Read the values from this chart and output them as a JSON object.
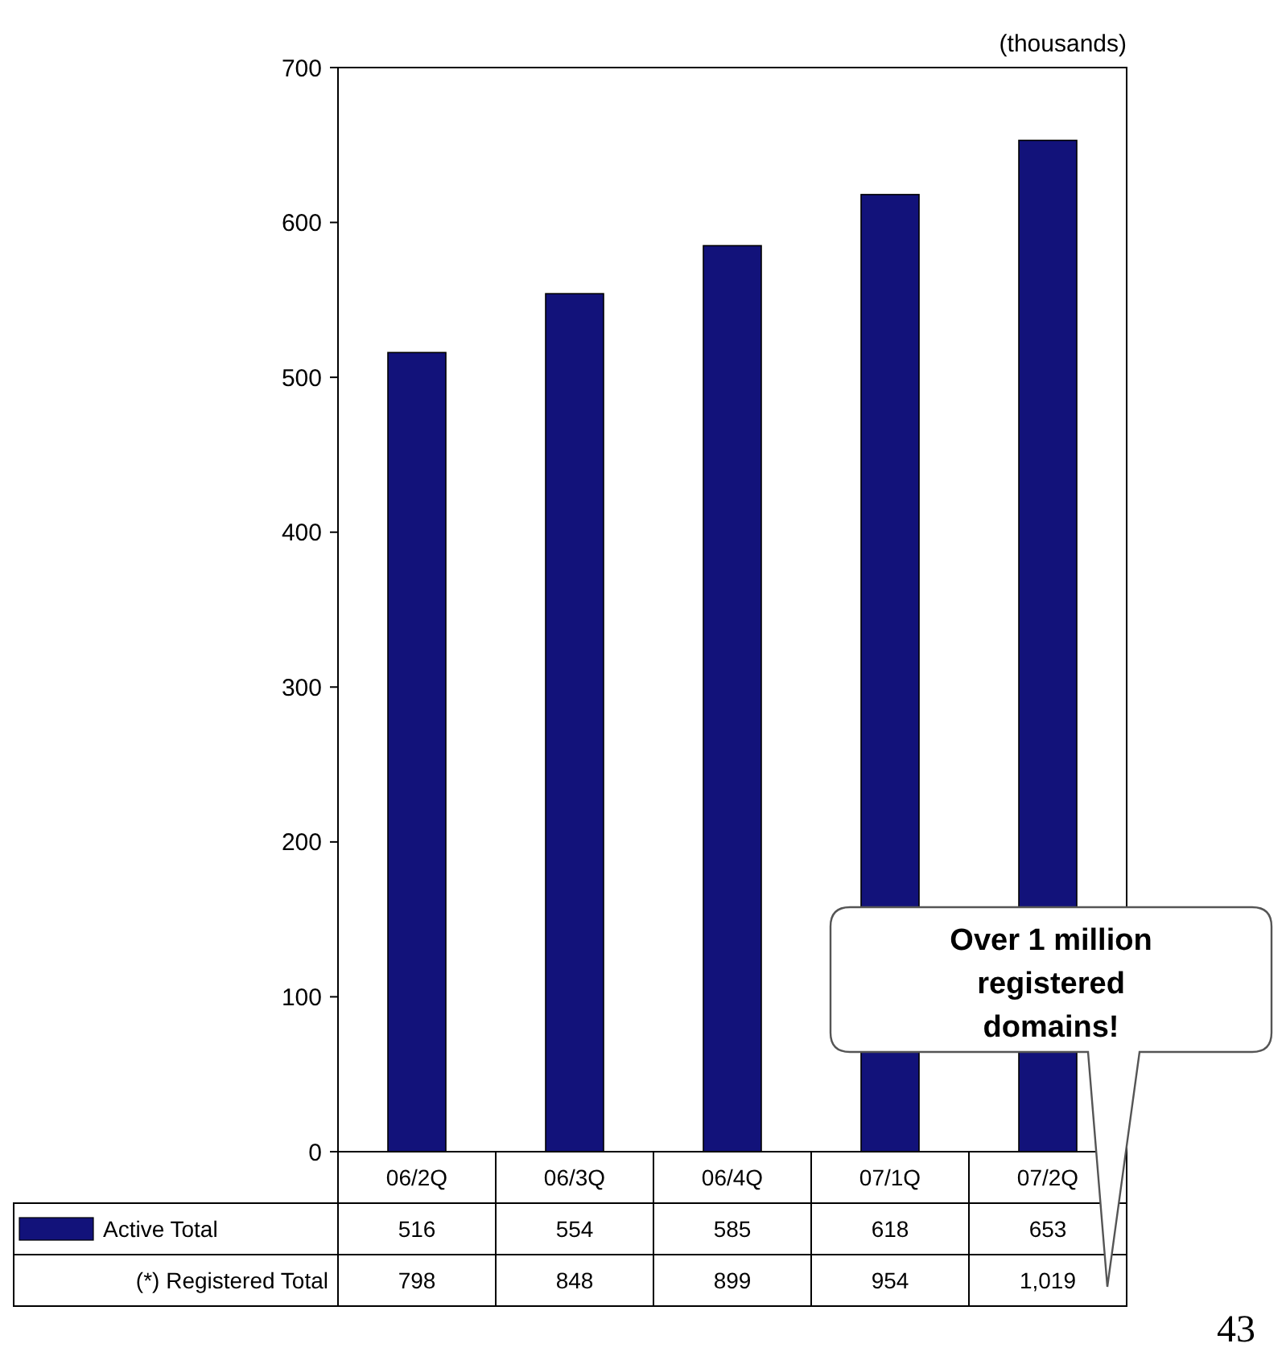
{
  "chart_data": {
    "type": "bar",
    "categories": [
      "06/2Q",
      "06/3Q",
      "06/4Q",
      "07/1Q",
      "07/2Q"
    ],
    "series": [
      {
        "name": "Active Total",
        "color": "#12127a",
        "values": [
          516,
          554,
          585,
          618,
          653
        ]
      }
    ],
    "ylim": [
      0,
      700
    ],
    "yticks": [
      0,
      100,
      200,
      300,
      400,
      500,
      600,
      700
    ],
    "data_labels": true,
    "legend": "bottom",
    "grid": false,
    "annotations": [
      "(thousands)",
      "Over 1 million registered domains!",
      "43",
      "(*) Registered Total",
      "798",
      "848",
      "899",
      "954",
      "1,019"
    ]
  }
}
